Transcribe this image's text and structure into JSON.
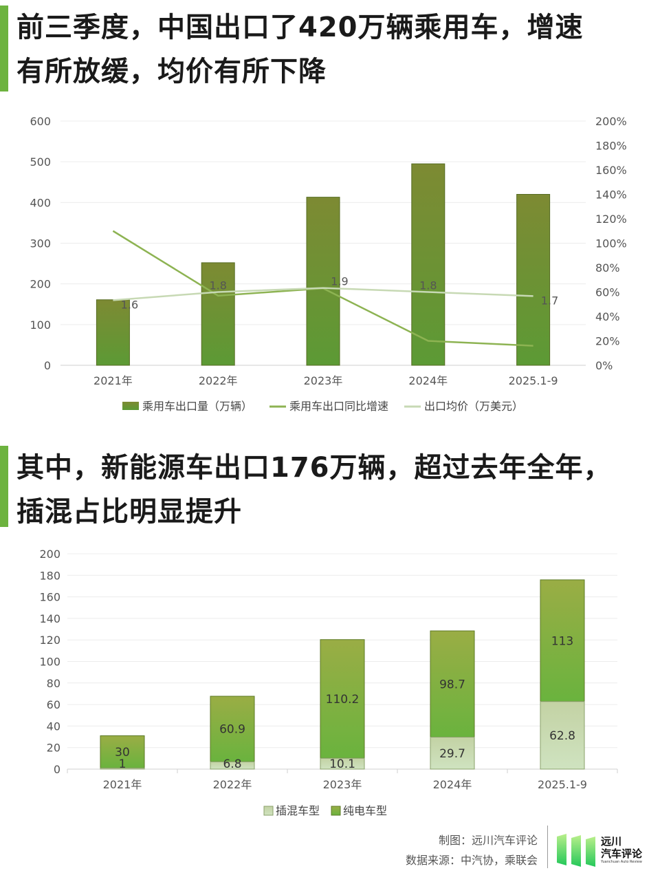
{
  "heading1": {
    "line1": "前三季度，中国出口了420万辆乘用车，增速",
    "line2": "有所放缓，均价有所下降"
  },
  "heading2": {
    "line1": "其中，新能源车出口176万辆，超过去年全年，",
    "line2": "插混占比明显提升"
  },
  "chart_data": [
    {
      "type": "bar",
      "categories": [
        "2021年",
        "2022年",
        "2023年",
        "2024年",
        "2025.1-9"
      ],
      "series": [
        {
          "name": "乘用车出口量（万辆）",
          "kind": "bar",
          "axis": "left",
          "values": [
            161,
            252,
            413,
            495,
            420
          ],
          "color": "#6e9130"
        },
        {
          "name": "乘用车出口同比增速",
          "kind": "line",
          "axis": "right",
          "values": [
            110,
            57,
            63,
            20,
            16
          ],
          "color": "#8db352"
        },
        {
          "name": "出口均价（万美元）",
          "kind": "line",
          "axis": "left-labels",
          "values": [
            1.6,
            1.8,
            1.9,
            1.8,
            1.7
          ],
          "plot_values": [
            160,
            180,
            190,
            180,
            170
          ],
          "color": "#c7d9b4"
        }
      ],
      "y_left": {
        "ticks": [
          "600",
          "500",
          "400",
          "300",
          "200",
          "100",
          "0"
        ],
        "ylim": [
          0,
          600
        ]
      },
      "y_right": {
        "ticks": [
          "200%",
          "180%",
          "160%",
          "140%",
          "120%",
          "100%",
          "80%",
          "60%",
          "40%",
          "20%",
          "0%"
        ],
        "ylim": [
          0,
          200
        ]
      },
      "grid": true,
      "legend": "bottom"
    },
    {
      "type": "bar",
      "stacked": true,
      "categories": [
        "2021年",
        "2022年",
        "2023年",
        "2024年",
        "2025.1-9"
      ],
      "series": [
        {
          "name": "插混车型",
          "values": [
            1,
            6.8,
            10.1,
            29.7,
            62.8
          ],
          "color": "#c5d9ad"
        },
        {
          "name": "纯电车型",
          "values": [
            30,
            60.9,
            110.2,
            98.7,
            113
          ],
          "color": "#86b43c"
        }
      ],
      "y": {
        "ticks": [
          "200",
          "180",
          "160",
          "140",
          "120",
          "100",
          "80",
          "60",
          "40",
          "20",
          "0"
        ],
        "ylim": [
          0,
          200
        ]
      },
      "grid": true,
      "legend": "bottom"
    }
  ],
  "footer": {
    "credit_line1": "制图：远川汽车评论",
    "credit_line2": "数据来源：中汽协，乘联会",
    "logo_cn1": "远川",
    "logo_cn2": "汽车评论",
    "logo_en": "Yuanchuan Auto Review"
  }
}
